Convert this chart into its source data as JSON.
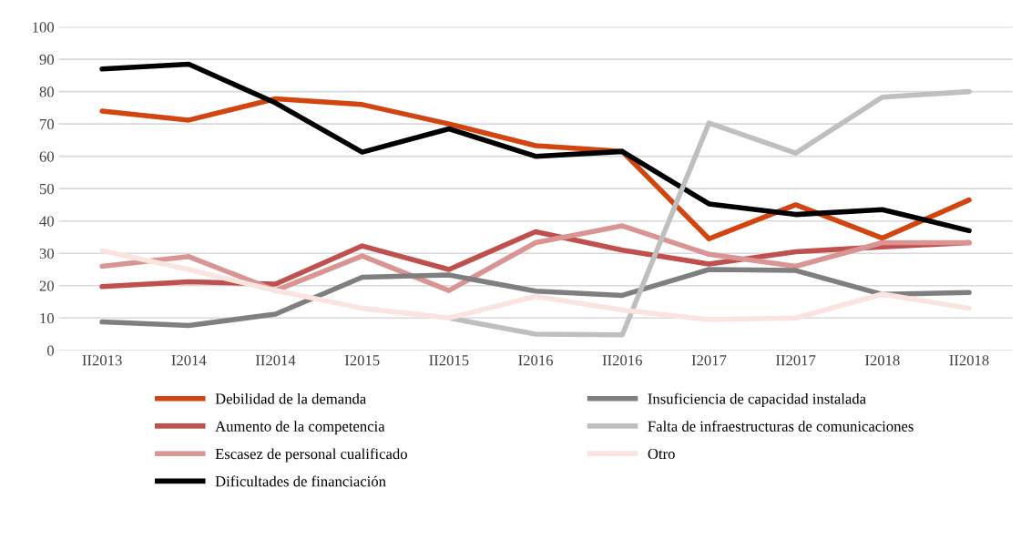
{
  "chart_data": {
    "type": "line",
    "categories": [
      "II2013",
      "I2014",
      "II2014",
      "I2015",
      "II2015",
      "I2016",
      "II2016",
      "I2017",
      "II2017",
      "I2018",
      "II2018"
    ],
    "series": [
      {
        "name": "Debilidad de la demanda",
        "color": "#d24511",
        "values": [
          74,
          71.2,
          77.8,
          76,
          70,
          63.3,
          61.5,
          34.5,
          45,
          34.7,
          46.5
        ]
      },
      {
        "name": "Aumento de la competencia",
        "color": "#c0504d",
        "values": [
          19.7,
          21.2,
          20.5,
          32.3,
          25,
          36.7,
          31,
          26.7,
          30.5,
          32,
          33.3
        ]
      },
      {
        "name": "Escasez de personal cualificado",
        "color": "#d99594",
        "values": [
          26,
          29,
          18.5,
          29.2,
          18.5,
          33.3,
          38.5,
          29.7,
          26,
          33.3,
          33.3
        ]
      },
      {
        "name": "Dificultades de financiación",
        "color": "#000000",
        "values": [
          87,
          88.5,
          76.5,
          61.3,
          68.5,
          60,
          61.5,
          45.3,
          42,
          43.5,
          37
        ]
      },
      {
        "name": "Insuficiencia de capacidad instalada",
        "color": "#7f7f7f",
        "values": [
          8.8,
          7.7,
          11.2,
          22.6,
          23.3,
          18.3,
          17,
          25,
          24.7,
          17.3,
          17.9
        ]
      },
      {
        "name": "Falta de infraestructuras de comunicaciones",
        "color": "#bfbfbf",
        "values": [
          null,
          null,
          null,
          null,
          10,
          5,
          4.8,
          70.3,
          61,
          78.3,
          80
        ]
      },
      {
        "name": "Otro",
        "color": "#f9e4df",
        "values": [
          30.8,
          25,
          18.5,
          13,
          10,
          16.7,
          12.5,
          9.5,
          10,
          17.4,
          13
        ]
      }
    ],
    "ylim": [
      0,
      100
    ],
    "yticks": [
      0,
      10,
      20,
      30,
      40,
      50,
      60,
      70,
      80,
      90,
      100
    ],
    "grid": "y",
    "legend": "bottom",
    "marker": "none",
    "line_style": "solid"
  }
}
